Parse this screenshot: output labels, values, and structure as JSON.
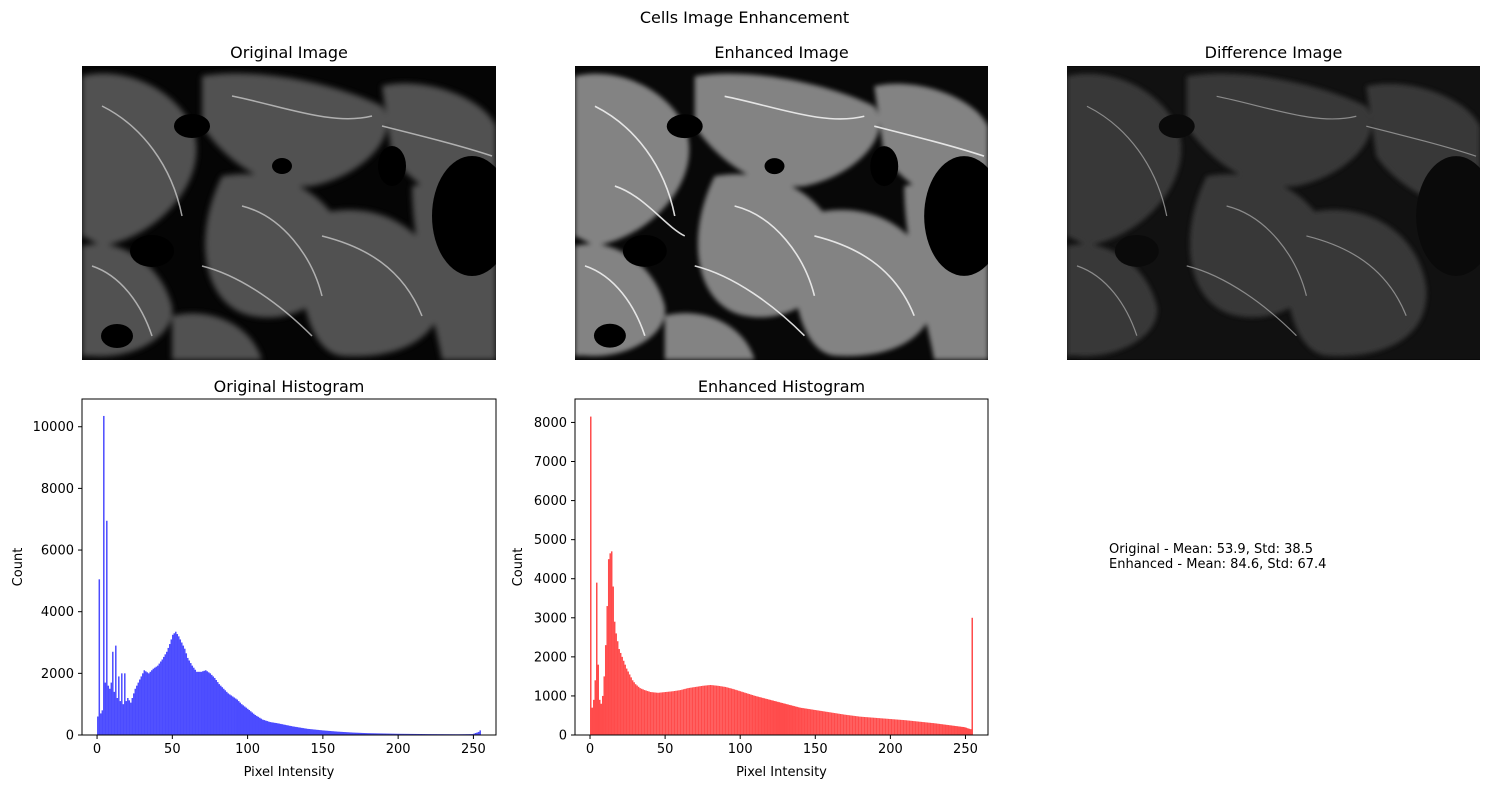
{
  "figure": {
    "title": "Cells Image Enhancement"
  },
  "panels": {
    "original_image": {
      "title": "Original Image",
      "image_description": "grayscale fluorescence micrograph of cells"
    },
    "enhanced_image": {
      "title": "Enhanced Image",
      "image_description": "contrast-enhanced grayscale micrograph"
    },
    "difference_image": {
      "title": "Difference Image",
      "image_description": "difference between enhanced and original"
    }
  },
  "stats": {
    "original": "Original - Mean: 53.9, Std: 38.5",
    "enhanced": "Enhanced - Mean: 84.6, Std: 67.4"
  },
  "colors": {
    "original_hist": "#4b4bff",
    "enhanced_hist": "#ff4b4b"
  },
  "chart_data": [
    {
      "type": "bar",
      "title": "Original Histogram",
      "xlabel": "Pixel Intensity",
      "ylabel": "Count",
      "xlim": [
        -10,
        265
      ],
      "ylim": [
        0,
        10900
      ],
      "xticks": [
        0,
        50,
        100,
        150,
        200,
        250
      ],
      "yticks": [
        0,
        2000,
        4000,
        6000,
        8000,
        10000
      ],
      "bins": 256,
      "color": "#4b4bff",
      "anchors": [
        [
          0,
          600
        ],
        [
          1,
          5050
        ],
        [
          2,
          700
        ],
        [
          3,
          800
        ],
        [
          4,
          10350
        ],
        [
          5,
          1700
        ],
        [
          6,
          6950
        ],
        [
          7,
          1600
        ],
        [
          8,
          1500
        ],
        [
          9,
          1700
        ],
        [
          10,
          2700
        ],
        [
          11,
          1400
        ],
        [
          12,
          2900
        ],
        [
          13,
          1200
        ],
        [
          14,
          1900
        ],
        [
          15,
          1100
        ],
        [
          16,
          2000
        ],
        [
          17,
          1000
        ],
        [
          18,
          2000
        ],
        [
          19,
          1100
        ],
        [
          20,
          1200
        ],
        [
          22,
          1050
        ],
        [
          25,
          1500
        ],
        [
          28,
          1800
        ],
        [
          31,
          2100
        ],
        [
          34,
          2000
        ],
        [
          37,
          2150
        ],
        [
          40,
          2250
        ],
        [
          43,
          2450
        ],
        [
          46,
          2700
        ],
        [
          48,
          2950
        ],
        [
          50,
          3250
        ],
        [
          52,
          3350
        ],
        [
          54,
          3200
        ],
        [
          56,
          3000
        ],
        [
          58,
          2800
        ],
        [
          60,
          2500
        ],
        [
          63,
          2250
        ],
        [
          66,
          2050
        ],
        [
          69,
          2050
        ],
        [
          72,
          2100
        ],
        [
          75,
          2000
        ],
        [
          78,
          1850
        ],
        [
          81,
          1650
        ],
        [
          84,
          1500
        ],
        [
          87,
          1350
        ],
        [
          90,
          1250
        ],
        [
          93,
          1150
        ],
        [
          96,
          1000
        ],
        [
          100,
          850
        ],
        [
          105,
          650
        ],
        [
          110,
          500
        ],
        [
          115,
          420
        ],
        [
          120,
          380
        ],
        [
          125,
          330
        ],
        [
          130,
          280
        ],
        [
          140,
          200
        ],
        [
          150,
          150
        ],
        [
          160,
          110
        ],
        [
          170,
          80
        ],
        [
          180,
          60
        ],
        [
          190,
          50
        ],
        [
          200,
          40
        ],
        [
          220,
          30
        ],
        [
          240,
          25
        ],
        [
          250,
          30
        ],
        [
          254,
          100
        ],
        [
          255,
          150
        ]
      ]
    },
    {
      "type": "bar",
      "title": "Enhanced Histogram",
      "xlabel": "Pixel Intensity",
      "ylabel": "Count",
      "xlim": [
        -10,
        265
      ],
      "ylim": [
        0,
        8600
      ],
      "xticks": [
        0,
        50,
        100,
        150,
        200,
        250
      ],
      "yticks": [
        0,
        1000,
        2000,
        3000,
        4000,
        5000,
        6000,
        7000,
        8000
      ],
      "bins": 256,
      "color": "#ff4b4b",
      "anchors": [
        [
          0,
          8150
        ],
        [
          1,
          700
        ],
        [
          2,
          900
        ],
        [
          3,
          1400
        ],
        [
          4,
          3900
        ],
        [
          5,
          1800
        ],
        [
          6,
          900
        ],
        [
          7,
          800
        ],
        [
          8,
          1000
        ],
        [
          9,
          1500
        ],
        [
          10,
          2300
        ],
        [
          11,
          3300
        ],
        [
          12,
          4500
        ],
        [
          13,
          4650
        ],
        [
          14,
          4700
        ],
        [
          15,
          3800
        ],
        [
          16,
          2900
        ],
        [
          17,
          2600
        ],
        [
          18,
          2400
        ],
        [
          19,
          2200
        ],
        [
          20,
          2100
        ],
        [
          22,
          1900
        ],
        [
          24,
          1700
        ],
        [
          26,
          1550
        ],
        [
          28,
          1400
        ],
        [
          30,
          1300
        ],
        [
          33,
          1200
        ],
        [
          36,
          1150
        ],
        [
          40,
          1100
        ],
        [
          45,
          1080
        ],
        [
          50,
          1100
        ],
        [
          55,
          1120
        ],
        [
          60,
          1150
        ],
        [
          65,
          1200
        ],
        [
          70,
          1230
        ],
        [
          75,
          1260
        ],
        [
          80,
          1280
        ],
        [
          85,
          1260
        ],
        [
          90,
          1230
        ],
        [
          95,
          1180
        ],
        [
          100,
          1120
        ],
        [
          110,
          1000
        ],
        [
          120,
          900
        ],
        [
          130,
          800
        ],
        [
          140,
          700
        ],
        [
          150,
          640
        ],
        [
          160,
          580
        ],
        [
          170,
          520
        ],
        [
          180,
          470
        ],
        [
          190,
          440
        ],
        [
          200,
          410
        ],
        [
          210,
          380
        ],
        [
          220,
          340
        ],
        [
          230,
          300
        ],
        [
          240,
          250
        ],
        [
          250,
          200
        ],
        [
          253,
          160
        ],
        [
          254,
          150
        ],
        [
          255,
          3000
        ]
      ]
    }
  ]
}
